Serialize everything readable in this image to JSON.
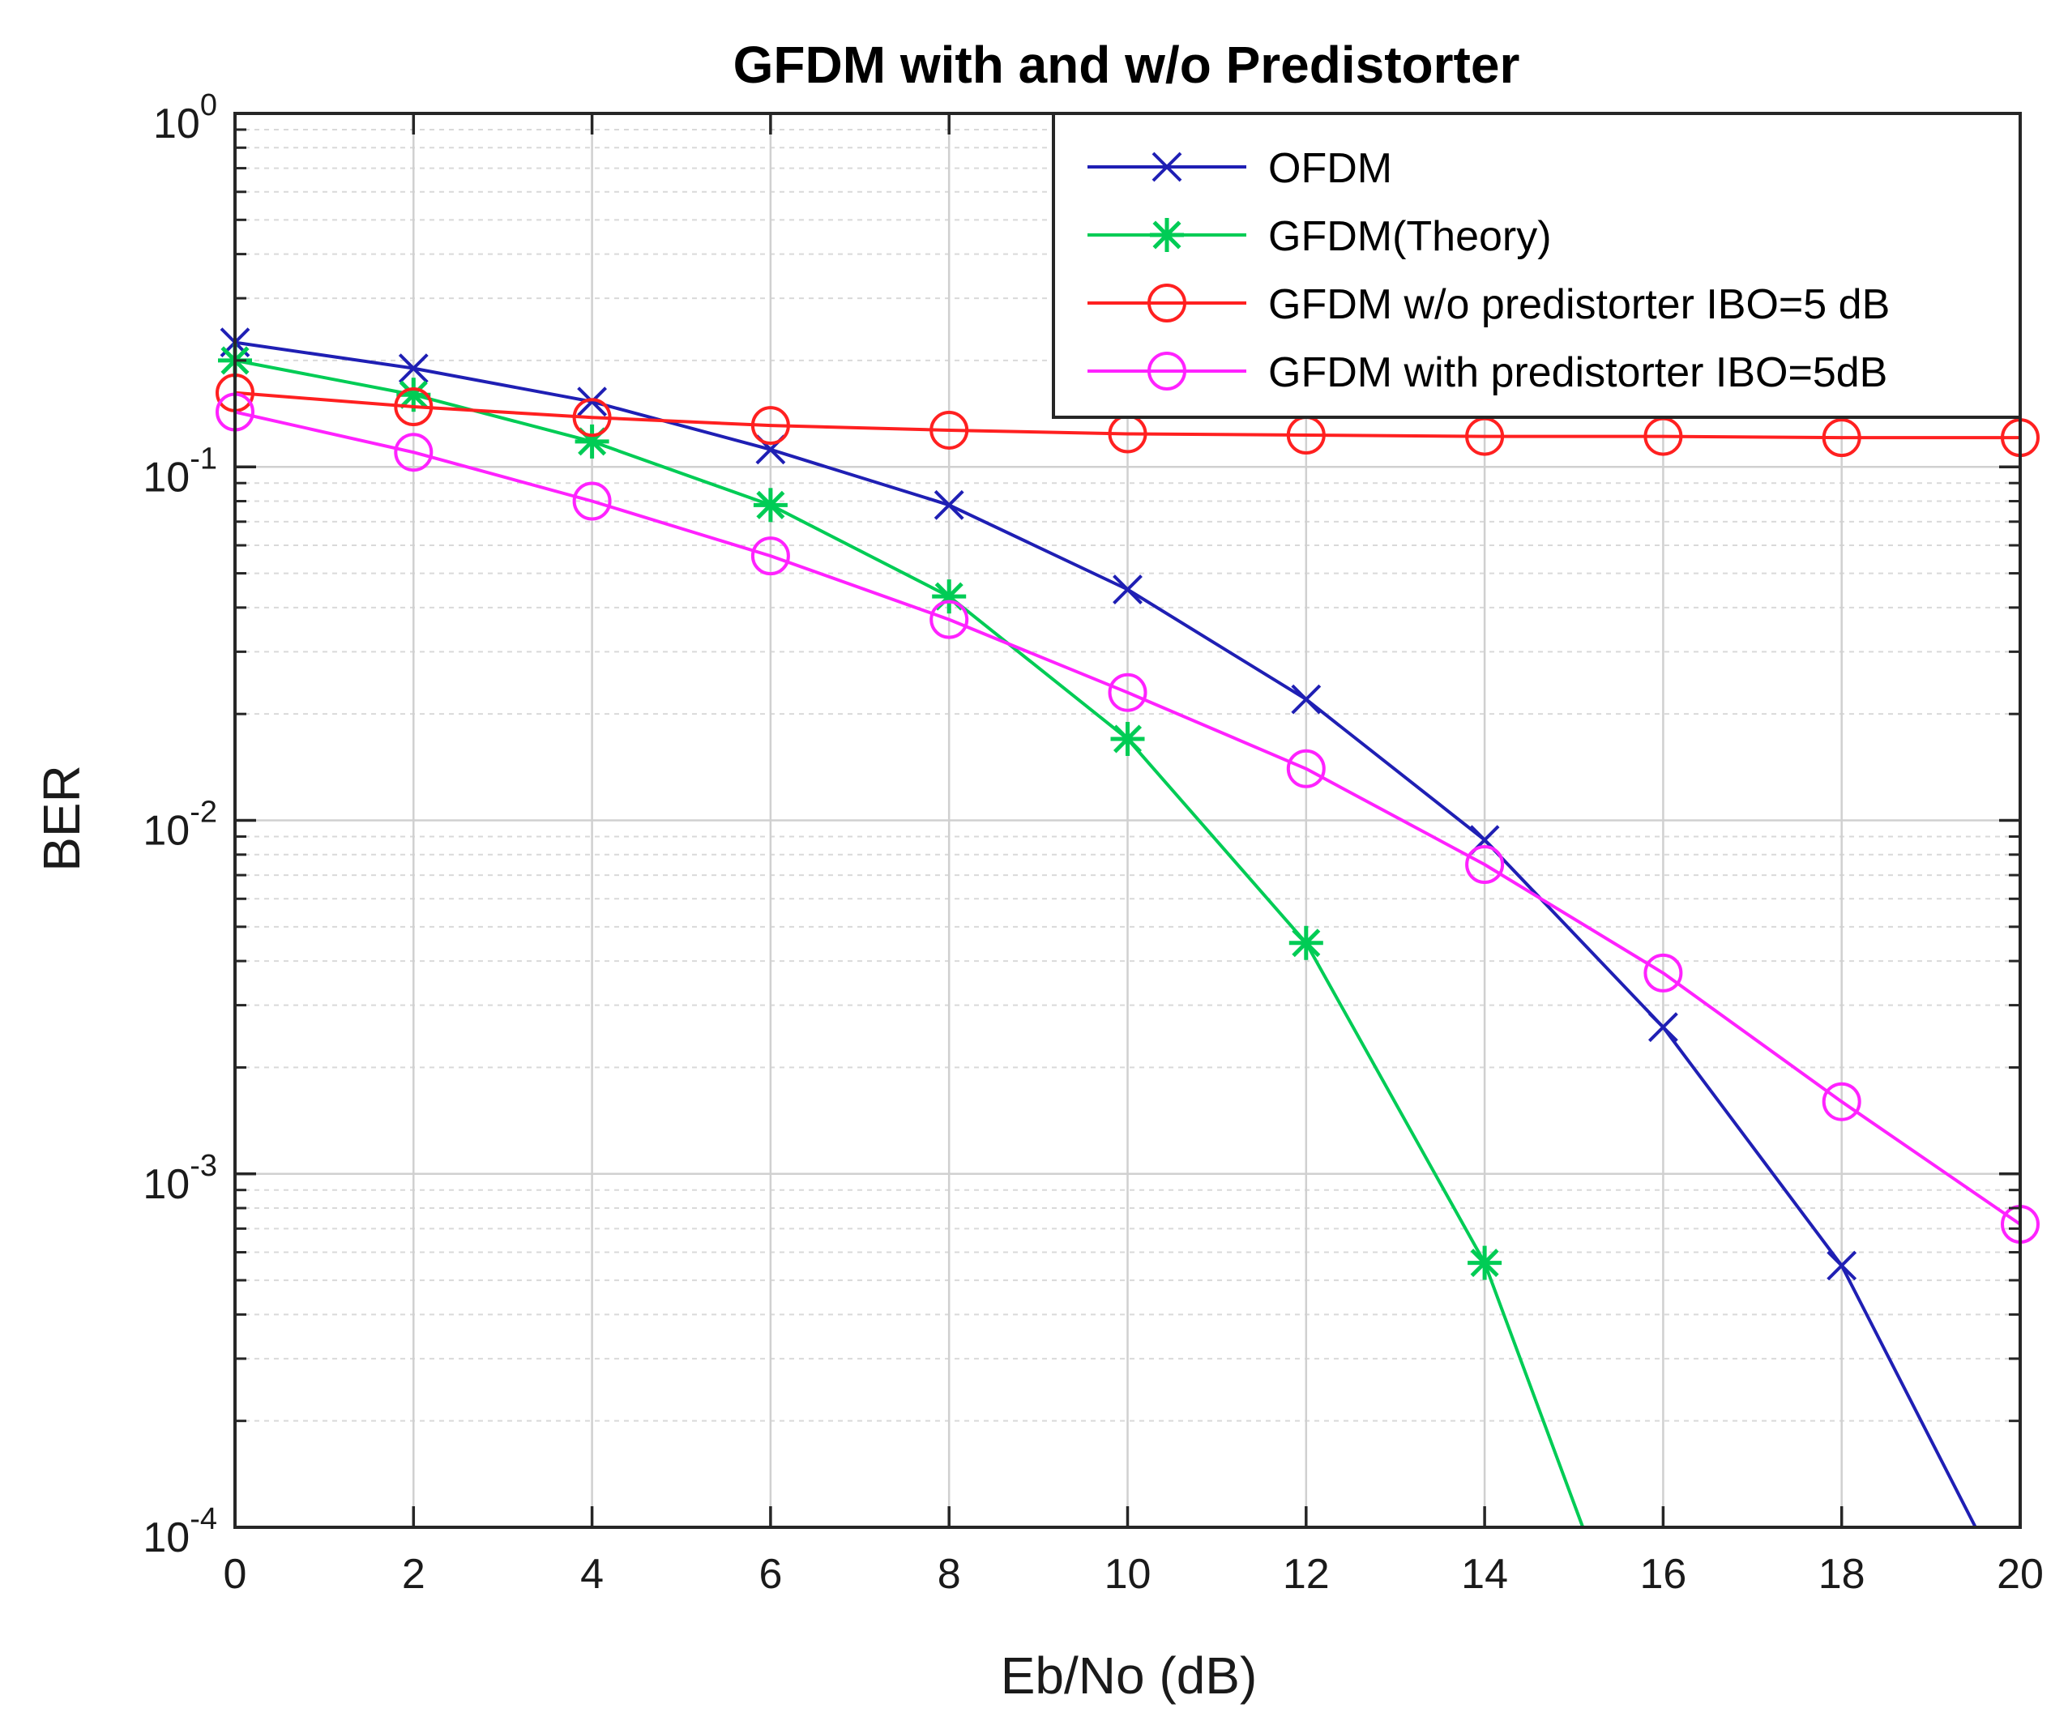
{
  "chart_data": {
    "type": "line",
    "title": "GFDM with and w/o Predistorter",
    "xlabel": "Eb/No (dB)",
    "ylabel": "BER",
    "x_scale": "linear",
    "y_scale": "log",
    "xlim": [
      0,
      20
    ],
    "ylim": [
      0.0001,
      1
    ],
    "x_ticks": [
      0,
      2,
      4,
      6,
      8,
      10,
      12,
      14,
      16,
      18,
      20
    ],
    "y_ticks": [
      {
        "base": "10",
        "exp": "0",
        "value": 1
      },
      {
        "base": "10",
        "exp": "-1",
        "value": 0.1
      },
      {
        "base": "10",
        "exp": "-2",
        "value": 0.01
      },
      {
        "base": "10",
        "exp": "-3",
        "value": 0.001
      },
      {
        "base": "10",
        "exp": "-4",
        "value": 0.0001
      }
    ],
    "grid": true,
    "minor_grid": true,
    "legend_position": "top-right",
    "series": [
      {
        "name": "OFDM",
        "color": "#1f1fb4",
        "marker": "x",
        "x": [
          0,
          2,
          4,
          6,
          8,
          10,
          12,
          14,
          16,
          18,
          19.5
        ],
        "y": [
          0.225,
          0.19,
          0.153,
          0.112,
          0.078,
          0.045,
          0.022,
          0.0088,
          0.0026,
          0.00055,
          0.0001
        ],
        "marker_points": 10
      },
      {
        "name": "GFDM(Theory)",
        "color": "#00cc55",
        "marker": "asterisk",
        "x": [
          0,
          2,
          4,
          6,
          8,
          10,
          12,
          14,
          15.1
        ],
        "y": [
          0.2,
          0.16,
          0.118,
          0.078,
          0.043,
          0.017,
          0.0045,
          0.00056,
          0.0001
        ],
        "marker_points": 8
      },
      {
        "name": "GFDM w/o predistorter IBO=5 dB",
        "color": "#ff2020",
        "marker": "circle",
        "x": [
          0,
          2,
          4,
          6,
          8,
          10,
          12,
          14,
          16,
          18,
          20
        ],
        "y": [
          0.162,
          0.148,
          0.138,
          0.131,
          0.127,
          0.124,
          0.123,
          0.122,
          0.122,
          0.121,
          0.121
        ],
        "marker_points": 11
      },
      {
        "name": "GFDM with predistorter IBO=5dB",
        "color": "#ff22ff",
        "marker": "circle",
        "x": [
          0,
          2,
          4,
          6,
          8,
          10,
          12,
          14,
          16,
          18,
          20
        ],
        "y": [
          0.143,
          0.11,
          0.08,
          0.056,
          0.037,
          0.023,
          0.014,
          0.0075,
          0.0037,
          0.0016,
          0.00072
        ],
        "marker_points": 11
      }
    ]
  }
}
